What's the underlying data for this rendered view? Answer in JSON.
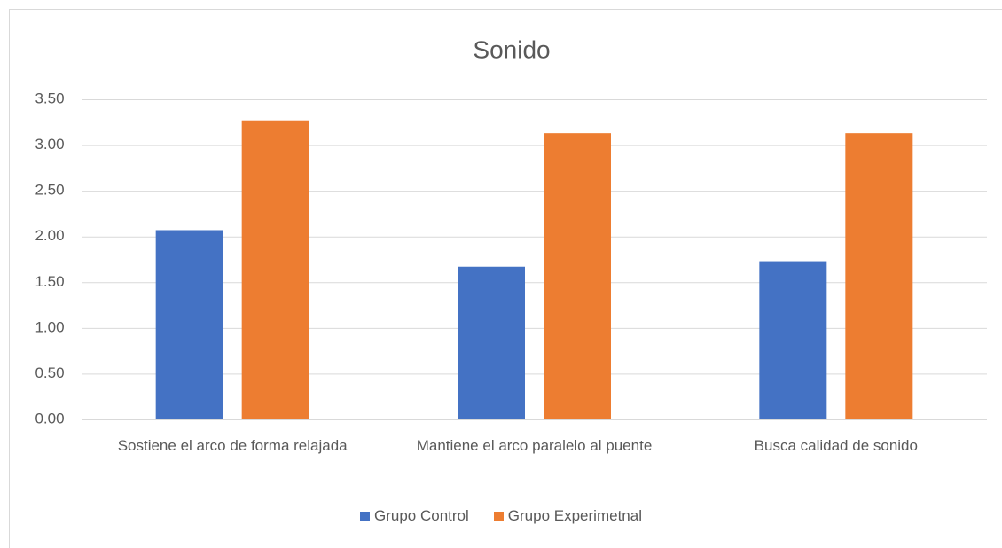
{
  "chart_data": {
    "type": "bar",
    "title": "Sonido",
    "categories": [
      "Sostiene el arco de forma relajada",
      "Mantiene el arco paralelo al puente",
      "Busca calidad de sonido"
    ],
    "series": [
      {
        "name": "Grupo Control",
        "color": "#4472c4",
        "values": [
          2.07,
          1.67,
          1.73
        ]
      },
      {
        "name": "Grupo Experimetnal",
        "color": "#ed7d31",
        "values": [
          3.27,
          3.13,
          3.13
        ]
      }
    ],
    "ylim": [
      0,
      3.5
    ],
    "yticks": [
      {
        "value": 0,
        "label": "0.00"
      },
      {
        "value": 0.5,
        "label": "0.50"
      },
      {
        "value": 1,
        "label": "1.00"
      },
      {
        "value": 1.5,
        "label": "1.50"
      },
      {
        "value": 2,
        "label": "2.00"
      },
      {
        "value": 2.5,
        "label": "2.50"
      },
      {
        "value": 3,
        "label": "3.00"
      },
      {
        "value": 3.5,
        "label": "3.50"
      }
    ],
    "grid": true,
    "legend": "bottom"
  }
}
